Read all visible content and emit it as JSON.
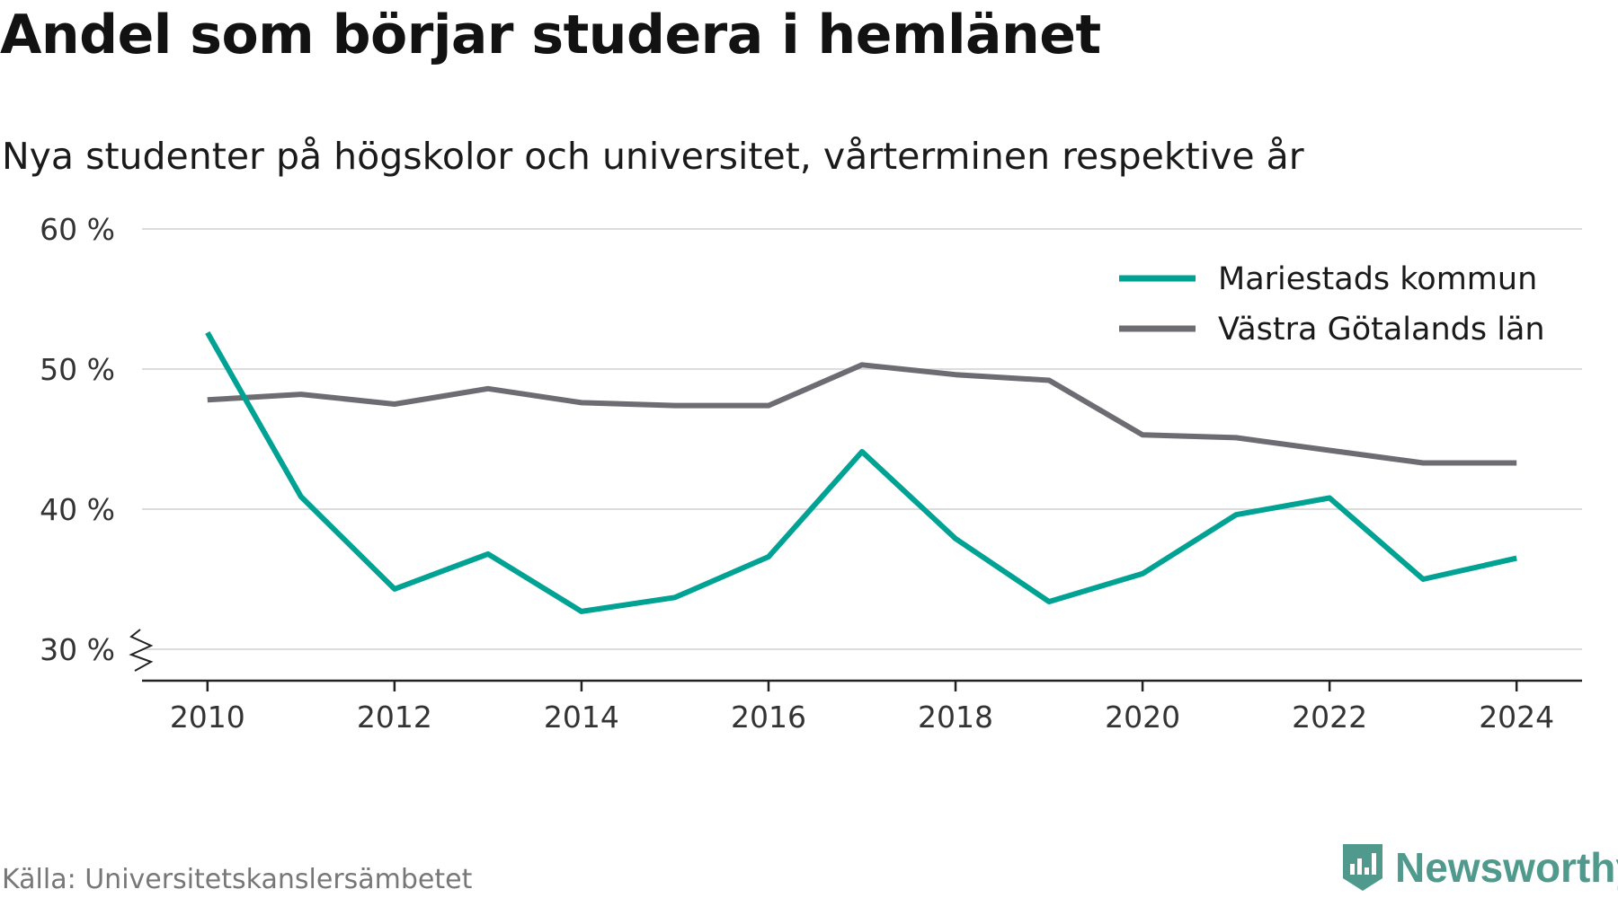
{
  "title": "Andel som börjar studera i hemlänet",
  "subtitle": "Nya studenter på högskolor och universitet, vårterminen respektive år",
  "source": "Källa: Universitetskanslersämbetet",
  "brand": {
    "name": "Newsworthy",
    "icon": "newsworthy-logo-icon",
    "color": "#4f9a8c"
  },
  "chart_data": {
    "type": "line",
    "x": [
      2010,
      2011,
      2012,
      2013,
      2014,
      2015,
      2016,
      2017,
      2018,
      2019,
      2020,
      2021,
      2022,
      2023,
      2024
    ],
    "xticks": [
      "2010",
      "2012",
      "2014",
      "2016",
      "2018",
      "2020",
      "2022",
      "2024"
    ],
    "xtick_values": [
      2010,
      2012,
      2014,
      2016,
      2018,
      2020,
      2022,
      2024
    ],
    "xlim": [
      2009.3,
      2024.7
    ],
    "ylim": [
      30,
      60
    ],
    "yticks": [
      "30 %",
      "40 %",
      "50 %",
      "60 %"
    ],
    "ytick_values": [
      30,
      40,
      50,
      60
    ],
    "y_axis_break": true,
    "grid": true,
    "legend_position": "top-right",
    "xlabel": "",
    "ylabel": "",
    "series": [
      {
        "name": "Mariestads kommun",
        "color": "#00a294",
        "values": [
          52.6,
          40.9,
          34.3,
          36.8,
          32.7,
          33.7,
          36.6,
          44.1,
          37.9,
          33.4,
          35.4,
          39.6,
          40.8,
          35.0,
          36.5
        ]
      },
      {
        "name": "Västra Götalands län",
        "color": "#6d6c72",
        "values": [
          47.8,
          48.2,
          47.5,
          48.6,
          47.6,
          47.4,
          47.4,
          50.3,
          49.6,
          49.2,
          45.3,
          45.1,
          44.2,
          43.3,
          43.3
        ]
      }
    ]
  }
}
